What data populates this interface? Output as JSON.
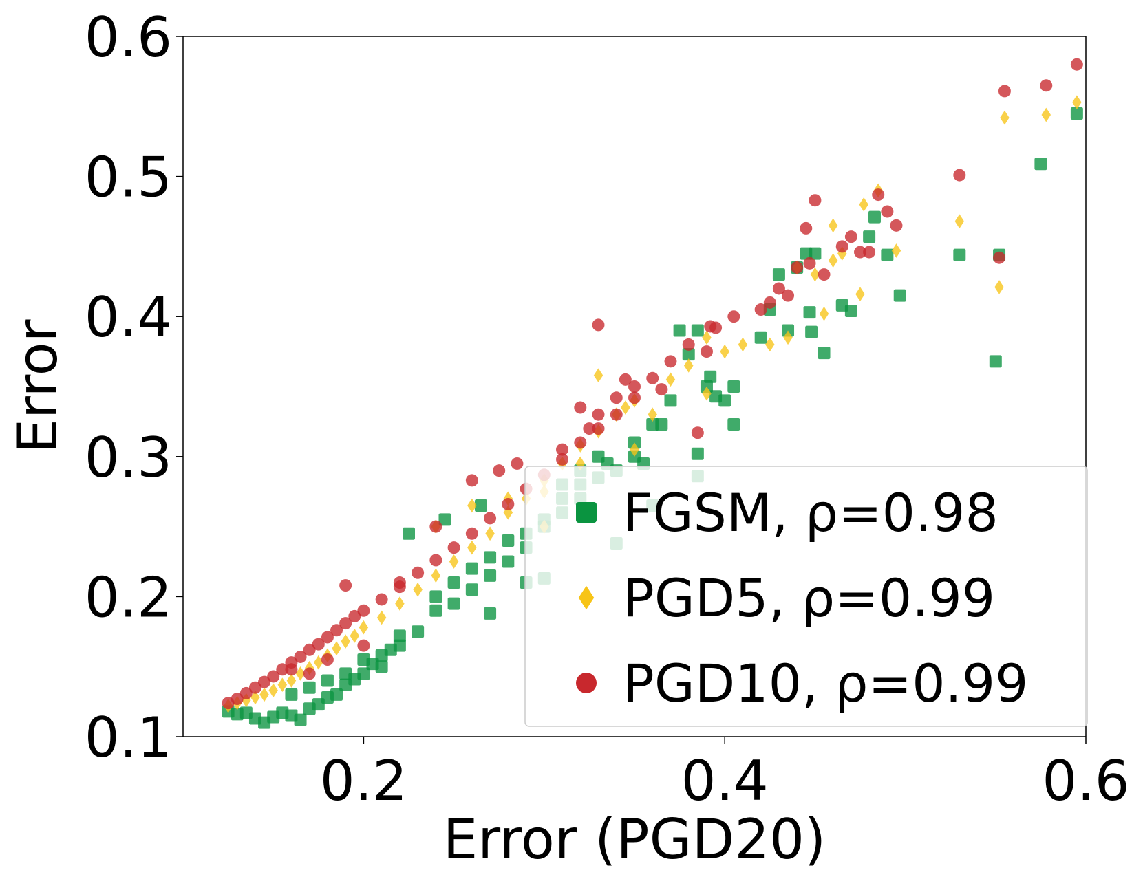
{
  "chart_data": {
    "type": "scatter",
    "title": "",
    "xlabel": "Error (PGD20)",
    "ylabel": "Error",
    "xlim": [
      0.1,
      0.6
    ],
    "ylim": [
      0.1,
      0.6
    ],
    "xticks": [
      0.2,
      0.4,
      0.6
    ],
    "yticks": [
      0.1,
      0.2,
      0.3,
      0.4,
      0.5,
      0.6
    ],
    "xtick_labels": [
      "0.2",
      "0.4",
      "0.6"
    ],
    "ytick_labels": [
      "0.1",
      "0.2",
      "0.3",
      "0.4",
      "0.5",
      "0.6"
    ],
    "grid": false,
    "legend_position": "lower-right",
    "series": [
      {
        "name": "FGSM",
        "legend_label": "FGSM, ρ=0.98",
        "marker": "square",
        "color": "#0a9440",
        "points": [
          [
            0.125,
            0.118
          ],
          [
            0.13,
            0.116
          ],
          [
            0.135,
            0.117
          ],
          [
            0.14,
            0.113
          ],
          [
            0.145,
            0.11
          ],
          [
            0.15,
            0.114
          ],
          [
            0.155,
            0.117
          ],
          [
            0.16,
            0.115
          ],
          [
            0.165,
            0.112
          ],
          [
            0.17,
            0.12
          ],
          [
            0.175,
            0.123
          ],
          [
            0.18,
            0.128
          ],
          [
            0.185,
            0.13
          ],
          [
            0.19,
            0.137
          ],
          [
            0.195,
            0.141
          ],
          [
            0.2,
            0.145
          ],
          [
            0.205,
            0.152
          ],
          [
            0.21,
            0.158
          ],
          [
            0.215,
            0.162
          ],
          [
            0.22,
            0.172
          ],
          [
            0.16,
            0.13
          ],
          [
            0.17,
            0.135
          ],
          [
            0.18,
            0.14
          ],
          [
            0.19,
            0.145
          ],
          [
            0.2,
            0.155
          ],
          [
            0.21,
            0.15
          ],
          [
            0.22,
            0.165
          ],
          [
            0.23,
            0.175
          ],
          [
            0.24,
            0.19
          ],
          [
            0.25,
            0.195
          ],
          [
            0.26,
            0.205
          ],
          [
            0.27,
            0.215
          ],
          [
            0.28,
            0.225
          ],
          [
            0.29,
            0.235
          ],
          [
            0.3,
            0.25
          ],
          [
            0.31,
            0.26
          ],
          [
            0.32,
            0.27
          ],
          [
            0.33,
            0.285
          ],
          [
            0.34,
            0.29
          ],
          [
            0.35,
            0.3
          ],
          [
            0.24,
            0.2
          ],
          [
            0.25,
            0.21
          ],
          [
            0.26,
            0.22
          ],
          [
            0.27,
            0.228
          ],
          [
            0.28,
            0.24
          ],
          [
            0.29,
            0.245
          ],
          [
            0.3,
            0.255
          ],
          [
            0.31,
            0.27
          ],
          [
            0.32,
            0.28
          ],
          [
            0.33,
            0.3
          ],
          [
            0.225,
            0.245
          ],
          [
            0.245,
            0.255
          ],
          [
            0.265,
            0.265
          ],
          [
            0.27,
            0.188
          ],
          [
            0.29,
            0.21
          ],
          [
            0.3,
            0.213
          ],
          [
            0.31,
            0.28
          ],
          [
            0.32,
            0.29
          ],
          [
            0.335,
            0.295
          ],
          [
            0.35,
            0.31
          ],
          [
            0.355,
            0.295
          ],
          [
            0.36,
            0.323
          ],
          [
            0.365,
            0.323
          ],
          [
            0.37,
            0.34
          ],
          [
            0.375,
            0.39
          ],
          [
            0.38,
            0.373
          ],
          [
            0.385,
            0.39
          ],
          [
            0.385,
            0.302
          ],
          [
            0.39,
            0.35
          ],
          [
            0.392,
            0.357
          ],
          [
            0.395,
            0.343
          ],
          [
            0.4,
            0.34
          ],
          [
            0.405,
            0.323
          ],
          [
            0.405,
            0.35
          ],
          [
            0.42,
            0.385
          ],
          [
            0.425,
            0.405
          ],
          [
            0.43,
            0.43
          ],
          [
            0.435,
            0.39
          ],
          [
            0.44,
            0.435
          ],
          [
            0.445,
            0.445
          ],
          [
            0.447,
            0.403
          ],
          [
            0.448,
            0.389
          ],
          [
            0.45,
            0.445
          ],
          [
            0.455,
            0.374
          ],
          [
            0.465,
            0.408
          ],
          [
            0.47,
            0.404
          ],
          [
            0.48,
            0.457
          ],
          [
            0.483,
            0.471
          ],
          [
            0.49,
            0.444
          ],
          [
            0.497,
            0.415
          ],
          [
            0.53,
            0.444
          ],
          [
            0.55,
            0.368
          ],
          [
            0.552,
            0.444
          ],
          [
            0.575,
            0.509
          ],
          [
            0.595,
            0.545
          ],
          [
            0.385,
            0.286
          ],
          [
            0.36,
            0.265
          ],
          [
            0.34,
            0.238
          ]
        ]
      },
      {
        "name": "PGD5",
        "legend_label": "PGD5, ρ=0.99",
        "marker": "diamond",
        "color": "#f7c417",
        "points": [
          [
            0.125,
            0.122
          ],
          [
            0.13,
            0.124
          ],
          [
            0.135,
            0.126
          ],
          [
            0.14,
            0.128
          ],
          [
            0.145,
            0.13
          ],
          [
            0.15,
            0.133
          ],
          [
            0.155,
            0.137
          ],
          [
            0.16,
            0.14
          ],
          [
            0.165,
            0.145
          ],
          [
            0.17,
            0.149
          ],
          [
            0.175,
            0.153
          ],
          [
            0.18,
            0.158
          ],
          [
            0.185,
            0.163
          ],
          [
            0.19,
            0.168
          ],
          [
            0.195,
            0.172
          ],
          [
            0.2,
            0.178
          ],
          [
            0.21,
            0.185
          ],
          [
            0.22,
            0.195
          ],
          [
            0.23,
            0.205
          ],
          [
            0.24,
            0.215
          ],
          [
            0.25,
            0.225
          ],
          [
            0.26,
            0.235
          ],
          [
            0.27,
            0.245
          ],
          [
            0.28,
            0.26
          ],
          [
            0.29,
            0.27
          ],
          [
            0.3,
            0.283
          ],
          [
            0.31,
            0.295
          ],
          [
            0.32,
            0.308
          ],
          [
            0.33,
            0.318
          ],
          [
            0.34,
            0.33
          ],
          [
            0.35,
            0.34
          ],
          [
            0.24,
            0.25
          ],
          [
            0.26,
            0.265
          ],
          [
            0.28,
            0.27
          ],
          [
            0.3,
            0.275
          ],
          [
            0.33,
            0.358
          ],
          [
            0.345,
            0.335
          ],
          [
            0.36,
            0.33
          ],
          [
            0.37,
            0.355
          ],
          [
            0.38,
            0.365
          ],
          [
            0.39,
            0.345
          ],
          [
            0.4,
            0.375
          ],
          [
            0.41,
            0.38
          ],
          [
            0.425,
            0.38
          ],
          [
            0.435,
            0.385
          ],
          [
            0.44,
            0.435
          ],
          [
            0.45,
            0.43
          ],
          [
            0.46,
            0.44
          ],
          [
            0.465,
            0.445
          ],
          [
            0.475,
            0.416
          ],
          [
            0.477,
            0.48
          ],
          [
            0.485,
            0.49
          ],
          [
            0.495,
            0.447
          ],
          [
            0.455,
            0.402
          ],
          [
            0.46,
            0.465
          ],
          [
            0.53,
            0.468
          ],
          [
            0.552,
            0.421
          ],
          [
            0.555,
            0.542
          ],
          [
            0.578,
            0.544
          ],
          [
            0.595,
            0.553
          ],
          [
            0.39,
            0.385
          ],
          [
            0.35,
            0.305
          ],
          [
            0.32,
            0.295
          ],
          [
            0.3,
            0.25
          ]
        ]
      },
      {
        "name": "PGD10",
        "legend_label": "PGD10, ρ=0.99",
        "marker": "circle",
        "color": "#c8282d",
        "points": [
          [
            0.125,
            0.124
          ],
          [
            0.13,
            0.127
          ],
          [
            0.135,
            0.131
          ],
          [
            0.14,
            0.135
          ],
          [
            0.145,
            0.139
          ],
          [
            0.15,
            0.143
          ],
          [
            0.155,
            0.148
          ],
          [
            0.16,
            0.153
          ],
          [
            0.165,
            0.157
          ],
          [
            0.17,
            0.162
          ],
          [
            0.175,
            0.166
          ],
          [
            0.18,
            0.171
          ],
          [
            0.185,
            0.176
          ],
          [
            0.19,
            0.181
          ],
          [
            0.195,
            0.186
          ],
          [
            0.2,
            0.19
          ],
          [
            0.21,
            0.198
          ],
          [
            0.22,
            0.207
          ],
          [
            0.23,
            0.217
          ],
          [
            0.24,
            0.226
          ],
          [
            0.25,
            0.235
          ],
          [
            0.26,
            0.245
          ],
          [
            0.27,
            0.256
          ],
          [
            0.28,
            0.266
          ],
          [
            0.29,
            0.277
          ],
          [
            0.3,
            0.287
          ],
          [
            0.31,
            0.298
          ],
          [
            0.32,
            0.31
          ],
          [
            0.33,
            0.32
          ],
          [
            0.34,
            0.33
          ],
          [
            0.35,
            0.342
          ],
          [
            0.16,
            0.148
          ],
          [
            0.17,
            0.145
          ],
          [
            0.18,
            0.155
          ],
          [
            0.19,
            0.208
          ],
          [
            0.2,
            0.165
          ],
          [
            0.22,
            0.21
          ],
          [
            0.24,
            0.25
          ],
          [
            0.26,
            0.283
          ],
          [
            0.275,
            0.29
          ],
          [
            0.285,
            0.295
          ],
          [
            0.31,
            0.305
          ],
          [
            0.32,
            0.335
          ],
          [
            0.325,
            0.32
          ],
          [
            0.33,
            0.33
          ],
          [
            0.33,
            0.394
          ],
          [
            0.34,
            0.342
          ],
          [
            0.345,
            0.355
          ],
          [
            0.35,
            0.35
          ],
          [
            0.36,
            0.356
          ],
          [
            0.365,
            0.348
          ],
          [
            0.37,
            0.368
          ],
          [
            0.38,
            0.38
          ],
          [
            0.385,
            0.317
          ],
          [
            0.39,
            0.375
          ],
          [
            0.392,
            0.393
          ],
          [
            0.395,
            0.392
          ],
          [
            0.405,
            0.4
          ],
          [
            0.42,
            0.405
          ],
          [
            0.425,
            0.41
          ],
          [
            0.43,
            0.42
          ],
          [
            0.435,
            0.415
          ],
          [
            0.44,
            0.435
          ],
          [
            0.445,
            0.463
          ],
          [
            0.447,
            0.438
          ],
          [
            0.45,
            0.483
          ],
          [
            0.455,
            0.43
          ],
          [
            0.465,
            0.45
          ],
          [
            0.47,
            0.457
          ],
          [
            0.475,
            0.446
          ],
          [
            0.48,
            0.446
          ],
          [
            0.485,
            0.487
          ],
          [
            0.49,
            0.475
          ],
          [
            0.495,
            0.465
          ],
          [
            0.53,
            0.501
          ],
          [
            0.552,
            0.442
          ],
          [
            0.555,
            0.561
          ],
          [
            0.578,
            0.565
          ],
          [
            0.595,
            0.58
          ]
        ]
      }
    ]
  }
}
